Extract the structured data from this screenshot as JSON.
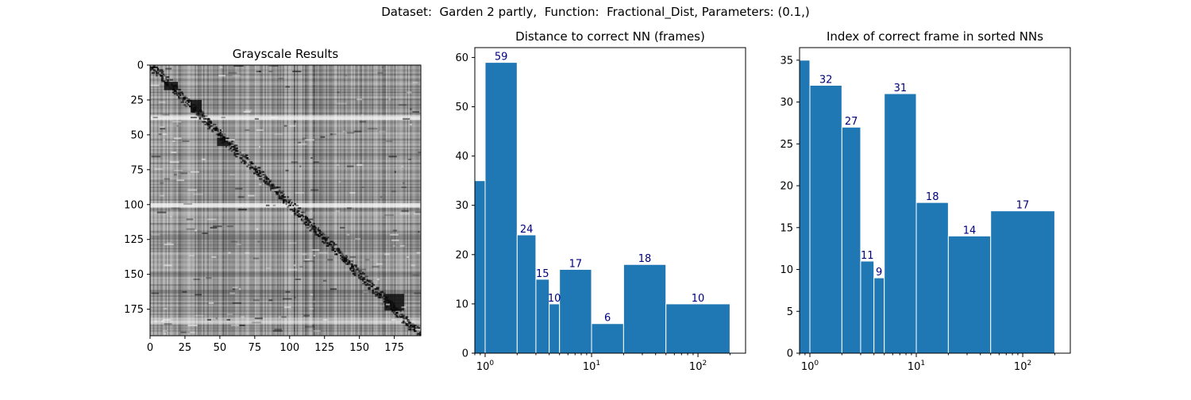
{
  "figure": {
    "suptitle": "Dataset:  Garden 2 partly,  Function:  Fractional_Dist, Parameters: (0.1,)"
  },
  "colors": {
    "bar": "#1f77b4",
    "bar_edge": "#ffffff",
    "label": "#00007f"
  },
  "chart_data": [
    {
      "type": "heatmap",
      "title": "Grayscale Results",
      "colormap": "gray",
      "rows": 194,
      "cols": 194,
      "xlim": [
        0,
        194
      ],
      "ylim": [
        194,
        0
      ],
      "xticks": [
        0,
        25,
        50,
        75,
        100,
        125,
        150,
        175
      ],
      "yticks": [
        0,
        25,
        50,
        75,
        100,
        125,
        150,
        175
      ],
      "pattern": "dark diagonal of low values from top-left to bottom-right, light horizontal bands near rows 37 and 100, dark blocks near (30,25) and (170,168)"
    },
    {
      "type": "bar",
      "title": "Distance to correct NN (frames)",
      "xscale": "log",
      "xlim": [
        0.8,
        280
      ],
      "ylim": [
        0,
        62
      ],
      "yticks": [
        0,
        10,
        20,
        30,
        40,
        50,
        60
      ],
      "xticks": [
        "10^0",
        "10^1",
        "10^2"
      ],
      "bins": [
        {
          "left": 0.8,
          "right": 1,
          "value": 35,
          "label": ""
        },
        {
          "left": 1,
          "right": 2,
          "value": 59,
          "label": "59"
        },
        {
          "left": 2,
          "right": 3,
          "value": 24,
          "label": "24"
        },
        {
          "left": 3,
          "right": 4,
          "value": 15,
          "label": "15"
        },
        {
          "left": 4,
          "right": 5,
          "value": 10,
          "label": "10"
        },
        {
          "left": 5,
          "right": 10,
          "value": 17,
          "label": "17"
        },
        {
          "left": 10,
          "right": 20,
          "value": 6,
          "label": "6"
        },
        {
          "left": 20,
          "right": 50,
          "value": 18,
          "label": "18"
        },
        {
          "left": 50,
          "right": 200,
          "value": 10,
          "label": "10"
        }
      ]
    },
    {
      "type": "bar",
      "title": "Index of correct frame in sorted NNs",
      "xscale": "log",
      "xlim": [
        0.8,
        280
      ],
      "ylim": [
        0,
        36.5
      ],
      "yticks": [
        0,
        5,
        10,
        15,
        20,
        25,
        30,
        35
      ],
      "xticks": [
        "10^0",
        "10^1",
        "10^2"
      ],
      "bins": [
        {
          "left": 0.8,
          "right": 1,
          "value": 35,
          "label": ""
        },
        {
          "left": 1,
          "right": 2,
          "value": 32,
          "label": "32"
        },
        {
          "left": 2,
          "right": 3,
          "value": 27,
          "label": "27"
        },
        {
          "left": 3,
          "right": 4,
          "value": 11,
          "label": "11"
        },
        {
          "left": 4,
          "right": 5,
          "value": 9,
          "label": "9"
        },
        {
          "left": 5,
          "right": 10,
          "value": 31,
          "label": "31"
        },
        {
          "left": 10,
          "right": 20,
          "value": 18,
          "label": "18"
        },
        {
          "left": 20,
          "right": 50,
          "value": 14,
          "label": "14"
        },
        {
          "left": 50,
          "right": 200,
          "value": 17,
          "label": "17"
        }
      ]
    }
  ]
}
